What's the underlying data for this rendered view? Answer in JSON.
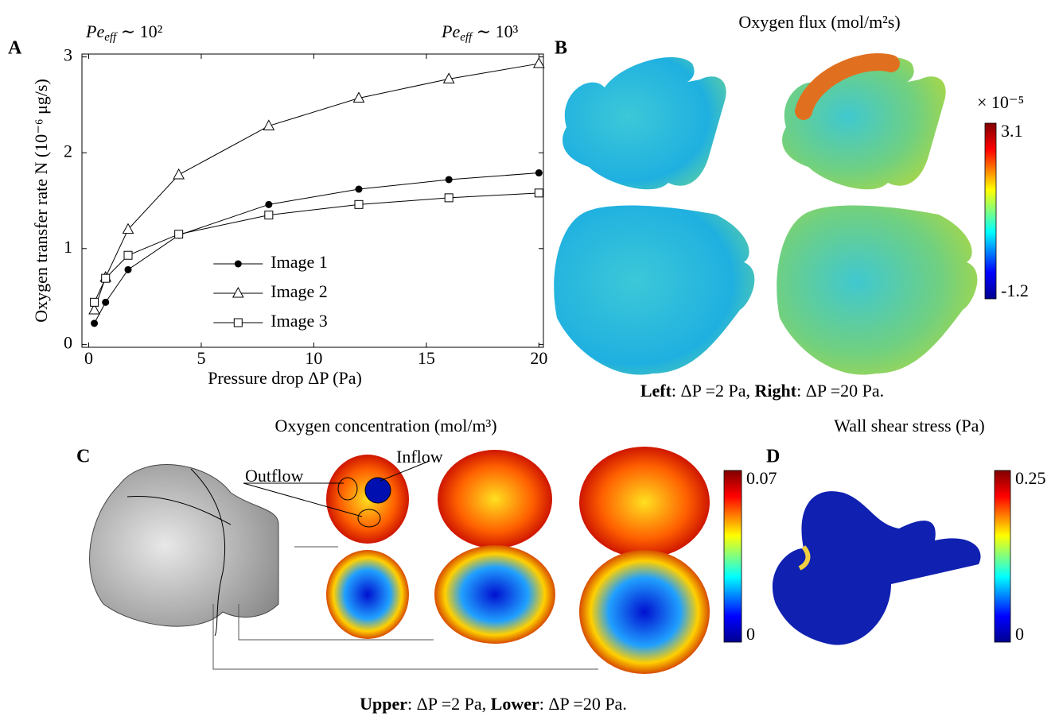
{
  "chart_data": {
    "type": "line",
    "label": "A",
    "xlabel": "Pressure drop ΔP (Pa)",
    "ylabel": "Oxygen transfer rate N (10⁻⁶ μg/s)",
    "annotations": [
      [
        "Pe",
        "eff",
        " ∼ 10²"
      ],
      [
        "Pe",
        "eff",
        " ∼ 10³"
      ]
    ],
    "x": [
      0.25,
      0.75,
      1.75,
      4,
      8,
      12,
      16,
      20
    ],
    "series": [
      {
        "name": "Image 1",
        "color": "#000000",
        "marker": "circle",
        "values": [
          0.22,
          0.44,
          0.78,
          1.14,
          1.46,
          1.62,
          1.72,
          1.79
        ]
      },
      {
        "name": "Image 2",
        "color": "#000000",
        "marker": "triangle",
        "values": [
          0.36,
          0.7,
          1.2,
          1.77,
          2.28,
          2.57,
          2.77,
          2.93
        ]
      },
      {
        "name": "Image 3",
        "color": "#000000",
        "marker": "square",
        "values": [
          0.44,
          0.69,
          0.93,
          1.15,
          1.35,
          1.46,
          1.53,
          1.58
        ]
      }
    ],
    "xlim": [
      -0.3,
      20.2
    ],
    "ylim": [
      -0.03,
      3.03
    ],
    "xticks": [
      0,
      5,
      10,
      15,
      20
    ],
    "yticks": [
      0,
      1,
      2,
      3
    ],
    "legend": "lower center",
    "grid": false
  },
  "panels": {
    "B": {
      "label": "B",
      "title": "Oxygen flux (mol/m²s)",
      "colorbar": {
        "multiplier": "× 10⁻⁵",
        "max": 3.1,
        "min": -1.2
      },
      "caption": [
        "Left",
        ": ΔP =2 Pa, ",
        "Right",
        ": ΔP =20 Pa."
      ]
    },
    "C": {
      "label": "C",
      "title": "Oxygen concentration (mol/m³)",
      "annotations": [
        "Outflow",
        "Inflow"
      ],
      "colorbar": {
        "max": 0.07,
        "min": 0
      },
      "caption": [
        "Upper",
        ": ΔP =2 Pa, ",
        "Lower",
        ": ΔP =20 Pa."
      ]
    },
    "D": {
      "label": "D",
      "title": "Wall shear stress (Pa)",
      "colorbar": {
        "max": 0.25,
        "min": 0
      }
    }
  }
}
